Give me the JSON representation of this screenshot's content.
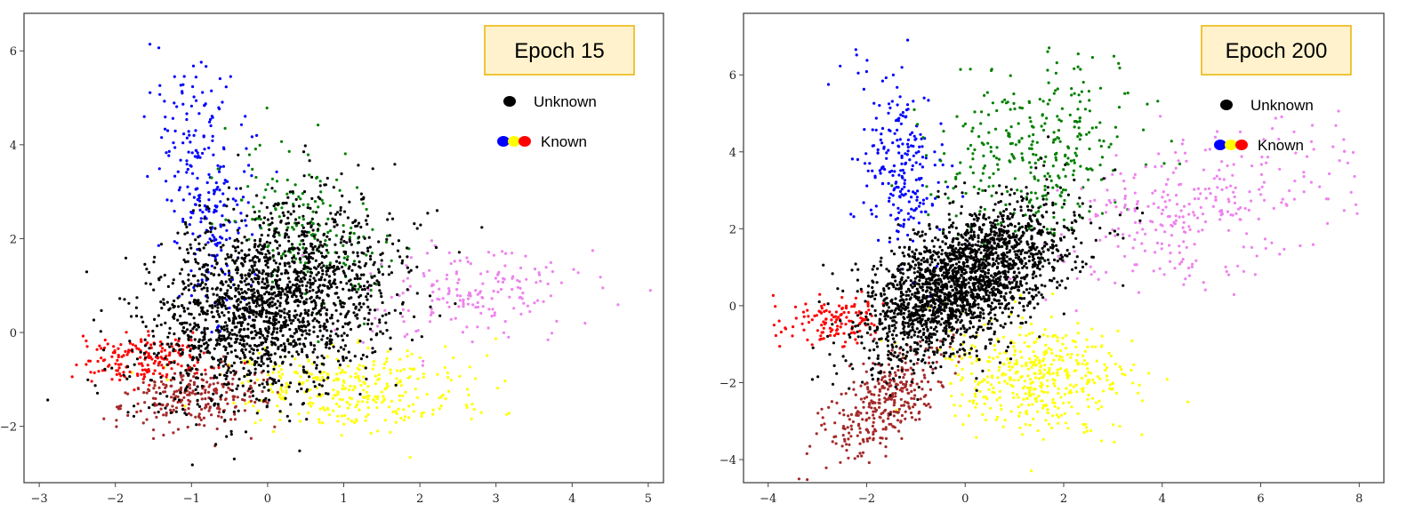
{
  "chart_data": [
    {
      "type": "scatter",
      "title": "Epoch 15",
      "xlim": [
        -3.2,
        5.2
      ],
      "ylim": [
        -3.2,
        6.8
      ],
      "xticks": [
        -3,
        -2,
        -1,
        0,
        1,
        2,
        3,
        4,
        5
      ],
      "yticks": [
        -2,
        0,
        2,
        4,
        6
      ],
      "xtick_labels": [
        "−3",
        "−2",
        "−1",
        "0",
        "1",
        "2",
        "3",
        "4",
        "5"
      ],
      "ytick_labels": [
        "−2",
        "0",
        "2",
        "4",
        "6"
      ],
      "grid": false,
      "legend": {
        "placement": "top-right",
        "items": [
          {
            "label": "Unknown",
            "colors": [
              "#000000"
            ]
          },
          {
            "label": "Known",
            "colors": [
              "#0000ff",
              "#ffff00",
              "#ff0000"
            ]
          }
        ]
      },
      "clusters": [
        {
          "color": "#0000ff",
          "n": 260,
          "cx": -0.8,
          "cy": 3.0,
          "sx": 0.3,
          "sy": 1.4,
          "rho": -0.4
        },
        {
          "color": "#008000",
          "n": 170,
          "cx": 0.6,
          "cy": 2.2,
          "sx": 0.6,
          "sy": 0.9,
          "rho": -0.3
        },
        {
          "color": "#ee82ee",
          "n": 180,
          "cx": 2.7,
          "cy": 0.9,
          "sx": 0.75,
          "sy": 0.5,
          "rho": 0.1
        },
        {
          "color": "#ffff00",
          "n": 320,
          "cx": 1.1,
          "cy": -1.2,
          "sx": 0.75,
          "sy": 0.45,
          "rho": -0.1
        },
        {
          "color": "#a52a2a",
          "n": 240,
          "cx": -1.0,
          "cy": -1.4,
          "sx": 0.45,
          "sy": 0.35,
          "rho": 0.2
        },
        {
          "color": "#ff0000",
          "n": 170,
          "cx": -1.7,
          "cy": -0.6,
          "sx": 0.45,
          "sy": 0.25,
          "rho": 0.2
        },
        {
          "color": "#000000",
          "n": 1900,
          "cx": 0.0,
          "cy": 0.6,
          "sx": 0.8,
          "sy": 1.05,
          "rho": 0.3
        }
      ]
    },
    {
      "type": "scatter",
      "title": "Epoch 200",
      "xlim": [
        -4.5,
        8.5
      ],
      "ylim": [
        -4.6,
        7.6
      ],
      "xticks": [
        -4,
        -2,
        0,
        2,
        4,
        6,
        8
      ],
      "yticks": [
        -4,
        -2,
        0,
        2,
        4,
        6
      ],
      "xtick_labels": [
        "−4",
        "−2",
        "0",
        "2",
        "4",
        "6",
        "8"
      ],
      "ytick_labels": [
        "−4",
        "−2",
        "0",
        "2",
        "4",
        "6"
      ],
      "grid": false,
      "legend": {
        "placement": "top-right",
        "items": [
          {
            "label": "Unknown",
            "colors": [
              "#000000"
            ]
          },
          {
            "label": "Known",
            "colors": [
              "#0000ff",
              "#ffff00",
              "#ff0000"
            ]
          }
        ]
      },
      "clusters": [
        {
          "color": "#0000ff",
          "n": 230,
          "cx": -1.3,
          "cy": 3.7,
          "sx": 0.45,
          "sy": 1.1,
          "rho": -0.2
        },
        {
          "color": "#008000",
          "n": 330,
          "cx": 1.5,
          "cy": 3.9,
          "sx": 1.0,
          "sy": 1.1,
          "rho": 0.2
        },
        {
          "color": "#ee82ee",
          "n": 300,
          "cx": 4.6,
          "cy": 2.4,
          "sx": 1.5,
          "sy": 1.0,
          "rho": 0.4
        },
        {
          "color": "#ffff00",
          "n": 450,
          "cx": 1.4,
          "cy": -1.8,
          "sx": 0.9,
          "sy": 0.7,
          "rho": -0.1
        },
        {
          "color": "#a52a2a",
          "n": 330,
          "cx": -1.6,
          "cy": -2.5,
          "sx": 0.6,
          "sy": 0.75,
          "rho": 0.6
        },
        {
          "color": "#ff0000",
          "n": 130,
          "cx": -2.7,
          "cy": -0.4,
          "sx": 0.55,
          "sy": 0.35,
          "rho": 0.2
        },
        {
          "color": "#000000",
          "n": 2200,
          "cx": -0.1,
          "cy": 0.6,
          "sx": 1.0,
          "sy": 1.0,
          "rho": 0.55
        }
      ]
    }
  ]
}
